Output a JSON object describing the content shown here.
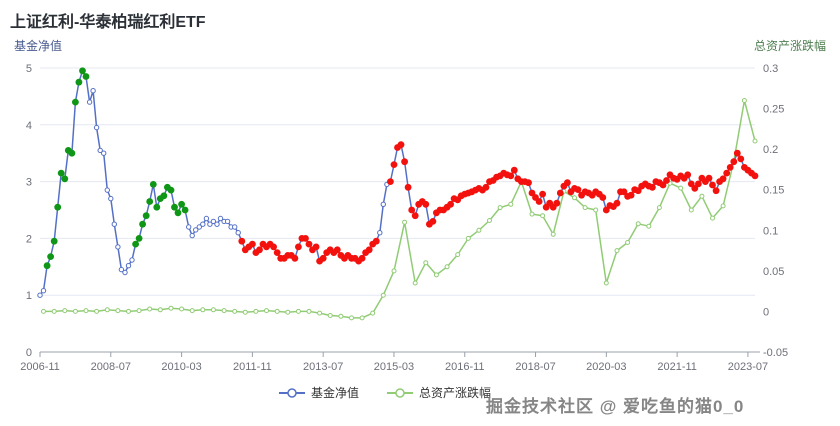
{
  "title": "上证红利-华泰柏瑞红利ETF",
  "watermark": "掘金技术社区 @ 爱吃鱼的猫0_0",
  "legend": {
    "items": [
      {
        "label": "基金净值",
        "color": "#5470c6"
      },
      {
        "label": "总资产涨跌幅",
        "color": "#91cc75"
      }
    ]
  },
  "chart_data": {
    "type": "line",
    "title": "上证红利-华泰柏瑞红利ETF",
    "grid": true,
    "legend_position": "bottom",
    "x_axis": {
      "start_month": "2006-11",
      "total_months": 203,
      "tick_labels": [
        "2006-11",
        "2008-07",
        "2010-03",
        "2011-11",
        "2013-07",
        "2015-03",
        "2016-11",
        "2018-07",
        "2020-03",
        "2021-11",
        "2023-07"
      ],
      "tick_month_offsets": [
        0,
        20,
        40,
        60,
        80,
        100,
        120,
        140,
        160,
        180,
        200
      ]
    },
    "y_axis_left": {
      "name": "基金净值",
      "name_color": "#47598f",
      "min": 0,
      "max": 5,
      "ticks": [
        0,
        1,
        2,
        3,
        4,
        5
      ],
      "tick_labels": [
        "0",
        "1",
        "2",
        "3",
        "4",
        "5"
      ]
    },
    "y_axis_right": {
      "name": "总资产涨跌幅",
      "name_color": "#4d7d4f",
      "min": -0.05,
      "max": 0.3,
      "ticks": [
        -0.05,
        0,
        0.05,
        0.1,
        0.15,
        0.2,
        0.25,
        0.3
      ],
      "tick_labels": [
        "-0.05",
        "0",
        "0.05",
        "0.1",
        "0.15",
        "0.2",
        "0.25",
        "0.3"
      ]
    },
    "series": [
      {
        "name": "基金净值",
        "axis": "left",
        "color": "#5470c6",
        "month_offset_start": 0,
        "month_step": 1,
        "values": [
          1.0,
          1.08,
          1.52,
          1.68,
          1.95,
          2.55,
          3.15,
          3.05,
          3.55,
          3.5,
          4.4,
          4.75,
          4.95,
          4.85,
          4.4,
          4.6,
          3.95,
          3.55,
          3.5,
          2.85,
          2.7,
          2.25,
          1.85,
          1.45,
          1.4,
          1.52,
          1.62,
          1.9,
          2.0,
          2.25,
          2.4,
          2.65,
          2.95,
          2.55,
          2.7,
          2.75,
          2.9,
          2.85,
          2.55,
          2.45,
          2.6,
          2.5,
          2.2,
          2.05,
          2.15,
          2.2,
          2.25,
          2.35,
          2.25,
          2.3,
          2.25,
          2.35,
          2.3,
          2.3,
          2.2,
          2.2,
          2.1,
          1.95,
          1.8,
          1.85,
          1.9,
          1.75,
          1.8,
          1.9,
          1.85,
          1.9,
          1.85,
          1.75,
          1.65,
          1.65,
          1.7,
          1.7,
          1.65,
          1.85,
          2.0,
          2.0,
          1.9,
          1.8,
          1.85,
          1.6,
          1.65,
          1.75,
          1.8,
          1.75,
          1.8,
          1.7,
          1.65,
          1.7,
          1.65,
          1.65,
          1.6,
          1.65,
          1.75,
          1.8,
          1.9,
          1.95,
          2.1,
          2.6,
          2.95,
          3.0,
          3.3,
          3.6,
          3.65,
          3.35,
          2.9,
          2.5,
          2.4,
          2.6,
          2.65,
          2.6,
          2.25,
          2.3,
          2.45,
          2.5,
          2.5,
          2.55,
          2.6,
          2.7,
          2.68,
          2.75,
          2.78,
          2.8,
          2.82,
          2.85,
          2.88,
          2.85,
          2.9,
          3.0,
          3.02,
          3.08,
          3.1,
          3.15,
          3.12,
          3.1,
          3.2,
          3.05,
          3.0,
          3.0,
          2.98,
          2.8,
          2.72,
          2.65,
          2.78,
          2.55,
          2.62,
          2.55,
          2.62,
          2.8,
          2.92,
          2.98,
          2.82,
          2.88,
          2.86,
          2.76,
          2.82,
          2.8,
          2.76,
          2.82,
          2.78,
          2.72,
          2.5,
          2.58,
          2.56,
          2.62,
          2.82,
          2.82,
          2.74,
          2.76,
          2.86,
          2.84,
          2.92,
          2.96,
          2.92,
          2.9,
          3.0,
          2.98,
          2.94,
          3.02,
          3.12,
          3.06,
          3.04,
          3.1,
          3.06,
          3.12,
          2.96,
          2.88,
          2.96,
          3.06,
          3.0,
          3.06,
          2.94,
          2.84,
          3.0,
          3.05,
          3.15,
          3.25,
          3.35,
          3.5,
          3.4,
          3.25,
          3.2,
          3.15,
          3.1
        ],
        "marker_colors": {
          "blue": "#5470c6",
          "green": "#0f9616",
          "red": "#f3110e"
        },
        "marker_segments": [
          {
            "color_key": "blue",
            "count": 2
          },
          {
            "color_key": "green",
            "count": 12
          },
          {
            "color_key": "blue",
            "count": 13
          },
          {
            "color_key": "green",
            "count": 15
          },
          {
            "color_key": "blue",
            "count": 15
          },
          {
            "color_key": "red",
            "count": 39
          },
          {
            "color_key": "blue",
            "count": 3
          },
          {
            "color_key": "red",
            "count": 104
          }
        ]
      },
      {
        "name": "总资产涨跌幅",
        "axis": "right",
        "color": "#91cc75",
        "month_offset_start": 1,
        "month_step": 3,
        "values": [
          0.0,
          0.0,
          0.001,
          0.0,
          0.001,
          0.0,
          0.002,
          0.001,
          0.0,
          0.001,
          0.003,
          0.002,
          0.004,
          0.003,
          0.001,
          0.002,
          0.002,
          0.001,
          0.0,
          -0.001,
          0.0,
          0.001,
          0.0,
          -0.001,
          0.0,
          0.0,
          -0.002,
          -0.005,
          -0.006,
          -0.008,
          -0.008,
          -0.002,
          0.02,
          0.05,
          0.11,
          0.035,
          0.06,
          0.045,
          0.055,
          0.07,
          0.09,
          0.1,
          0.112,
          0.128,
          0.132,
          0.16,
          0.12,
          0.118,
          0.095,
          0.148,
          0.14,
          0.128,
          0.125,
          0.035,
          0.075,
          0.085,
          0.108,
          0.105,
          0.128,
          0.158,
          0.152,
          0.125,
          0.142,
          0.115,
          0.13,
          0.185,
          0.26,
          0.21
        ]
      }
    ]
  }
}
